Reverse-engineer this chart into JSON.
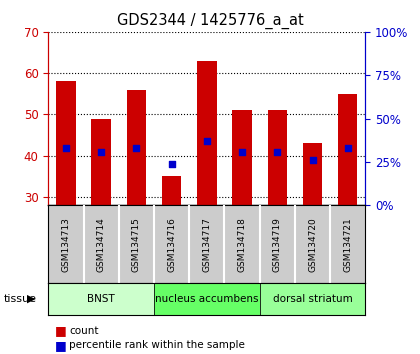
{
  "title": "GDS2344 / 1425776_a_at",
  "samples": [
    "GSM134713",
    "GSM134714",
    "GSM134715",
    "GSM134716",
    "GSM134717",
    "GSM134718",
    "GSM134719",
    "GSM134720",
    "GSM134721"
  ],
  "counts": [
    58,
    49,
    56,
    35,
    63,
    51,
    51,
    43,
    55
  ],
  "pct_ranks": [
    33,
    31,
    33,
    24,
    37,
    31,
    31,
    26,
    33
  ],
  "y_min": 28,
  "y_max": 70,
  "y_ticks": [
    30,
    40,
    50,
    60,
    70
  ],
  "y2_ticks": [
    0,
    25,
    50,
    75,
    100
  ],
  "bar_color": "#cc0000",
  "dot_color": "#0000cc",
  "bar_width": 0.55,
  "tissue_groups": [
    {
      "label": "BNST",
      "start": 0,
      "end": 3,
      "color": "#ccffcc"
    },
    {
      "label": "nucleus accumbens",
      "start": 3,
      "end": 6,
      "color": "#66ff66"
    },
    {
      "label": "dorsal striatum",
      "start": 6,
      "end": 9,
      "color": "#99ff99"
    }
  ],
  "tissue_label": "tissue",
  "legend_count_label": "count",
  "legend_pct_label": "percentile rank within the sample",
  "left_axis_color": "#cc0000",
  "right_axis_color": "#0000cc",
  "sample_box_color": "#cccccc",
  "bg_color": "white"
}
